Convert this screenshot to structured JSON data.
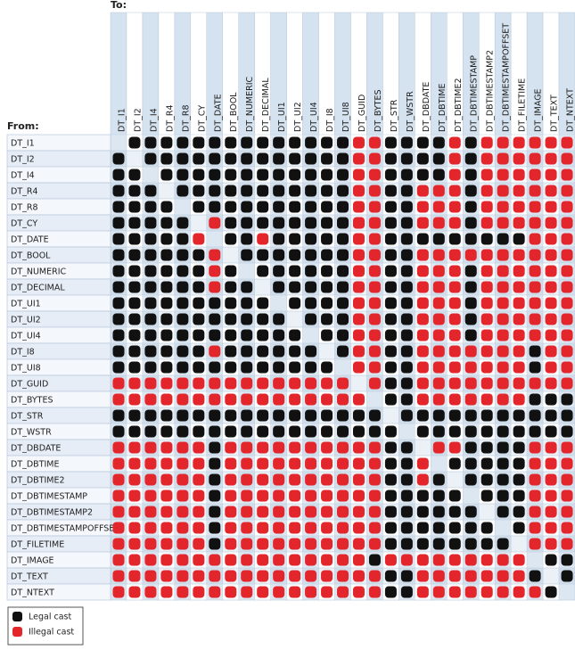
{
  "header": {
    "to": "To:",
    "from": "From:"
  },
  "types": [
    "DT_I1",
    "DT_I2",
    "DT_I4",
    "DT_R4",
    "DT_R8",
    "DT_CY",
    "DT_DATE",
    "DT_BOOL",
    "DT_NUMERIC",
    "DT_DECIMAL",
    "DT_UI1",
    "DT_UI2",
    "DT_UI4",
    "DT_I8",
    "DT_UI8",
    "DT_GUID",
    "DT_BYTES",
    "DT_STR",
    "DT_WSTR",
    "DT_DBDATE",
    "DT_DBTIME",
    "DT_DBTIME2",
    "DT_DBTIMESTAMP",
    "DT_DBTIMESTAMP2",
    "DT_DBTIMESTAMPOFFSET",
    "DT_FILETIME",
    "DT_IMAGE",
    "DT_TEXT",
    "DT_NTEXT"
  ],
  "matrix": {
    "rows": [
      ".LLLLLLLLLLLLLLIILLLLILIIIIII",
      "L.LLLLLLLLLLLLLIILLLLILIIIIII",
      "LL.LLLLLLLLLLLLIILLLLILIIIIII",
      "LLL.LLLLLLLLLLLIILLIIILIIIIII",
      "LLLL.LLLLLLLLLLIILLIIILIIIIII",
      "LLLLL.ILLLLLLLLIILLIIILIIIIII",
      "LLLLLI.LLILLLLLIILLLLLLLLLIII",
      "LLLLLLI.LLLLLLLIILLIIIIIIIIII",
      "LLLLLLIL.LLLLLLIILLIIILIIIIII",
      "LLLLLLILL.LLLLLIILLIIILIIIIII",
      "LLLLLLLLLL.LLLLIILLIIILIIIIII",
      "LLLLLLLLLLL.LLLIILLIIILIIIIII",
      "LLLLLLLLLLLL.LLIILLIIILIIIIII",
      "LLLLLLILLLLLL.LIILLIIIIIIILII",
      "LLLLLLLLLLLLLL.IILLIIIIIIILII",
      "IIIIIIIIIIIIIII.ILLIIIIIIIIII",
      "IIIIIIIIIIIIIIII.LLIIIIIIILLL",
      "LLLLLLLLLLLLLLLLL.LLLLLLLLLLL",
      "LLLLLLLLLLLLLLLLLL.LLLLLLLLLL",
      "IIIIIILIIIIIIIIIILL.IILLLLIII",
      "IIIIIILIIIIIIIIIILLI.LLLLLIII",
      "IIIIIILIIIIIIIIIILLIL.LLLLIII",
      "IIIIIILIIIIIIIIIILLLLL.LLLIII",
      "IIIIIILIIIIIIIIIILLLLLL.LLIII",
      "IIIIIILIIIIIIIIIILLLLLLL.LIII",
      "IIIIIILIIIIIIIIIILLLLLLLL.III",
      "IIIIIIIIIIIIIIIILIIIIIIIII.LL",
      "IIIIIIIIIIIIIIIIILLIIIIIIIL.L",
      "IIIIIIIIIIIIIIIIILLIIIIIIIIL."
    ]
  },
  "legend": {
    "L": "Legal cast",
    "I": "Illegal cast"
  }
}
